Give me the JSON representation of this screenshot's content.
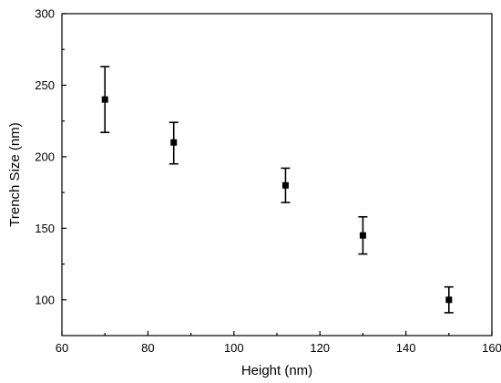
{
  "chart_data": {
    "type": "scatter",
    "xlabel": "Height (nm)",
    "ylabel": "Trench Size (nm)",
    "xlim": [
      60,
      160
    ],
    "ylim": [
      75,
      300
    ],
    "xticks": [
      60,
      80,
      100,
      120,
      140,
      160
    ],
    "yticks": [
      100,
      150,
      200,
      250,
      300
    ],
    "grid": false,
    "marker": "square",
    "points": [
      {
        "x": 70,
        "y": 240,
        "err_low": 217,
        "err_high": 263
      },
      {
        "x": 86,
        "y": 210,
        "err_low": 195,
        "err_high": 224
      },
      {
        "x": 112,
        "y": 180,
        "err_low": 168,
        "err_high": 192
      },
      {
        "x": 130,
        "y": 145,
        "err_low": 132,
        "err_high": 158
      },
      {
        "x": 150,
        "y": 100,
        "err_low": 91,
        "err_high": 109
      }
    ]
  }
}
